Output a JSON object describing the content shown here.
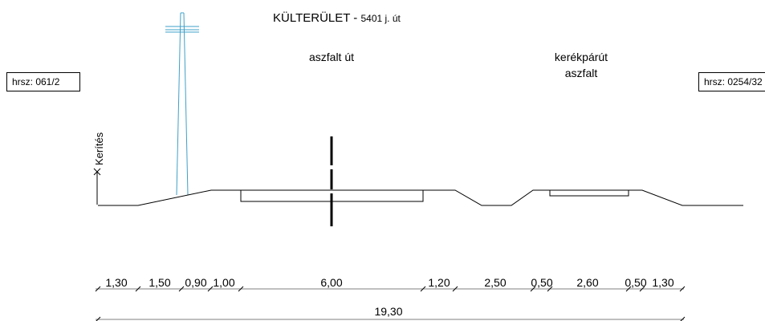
{
  "title": {
    "main": "KÜLTERÜLET",
    "dash": " - ",
    "sub": "5401 j. út"
  },
  "labels": {
    "road": "aszfalt út",
    "bike_line1": "kerékpárút",
    "bike_line2": "aszfalt",
    "fence": "Kerítés"
  },
  "parcels": {
    "left": "hrsz: 061/2",
    "right": "hrsz: 0254/32"
  },
  "dimensions": {
    "segments": [
      "1,30",
      "1,50",
      "0,90",
      "1,00",
      "6,00",
      "1,20",
      "2,50",
      "0,50",
      "2,60",
      "0,50",
      "1,30"
    ],
    "total": "19,30"
  },
  "colors": {
    "ink": "#000000",
    "pole": "#3fa0c8",
    "background": "#ffffff"
  }
}
